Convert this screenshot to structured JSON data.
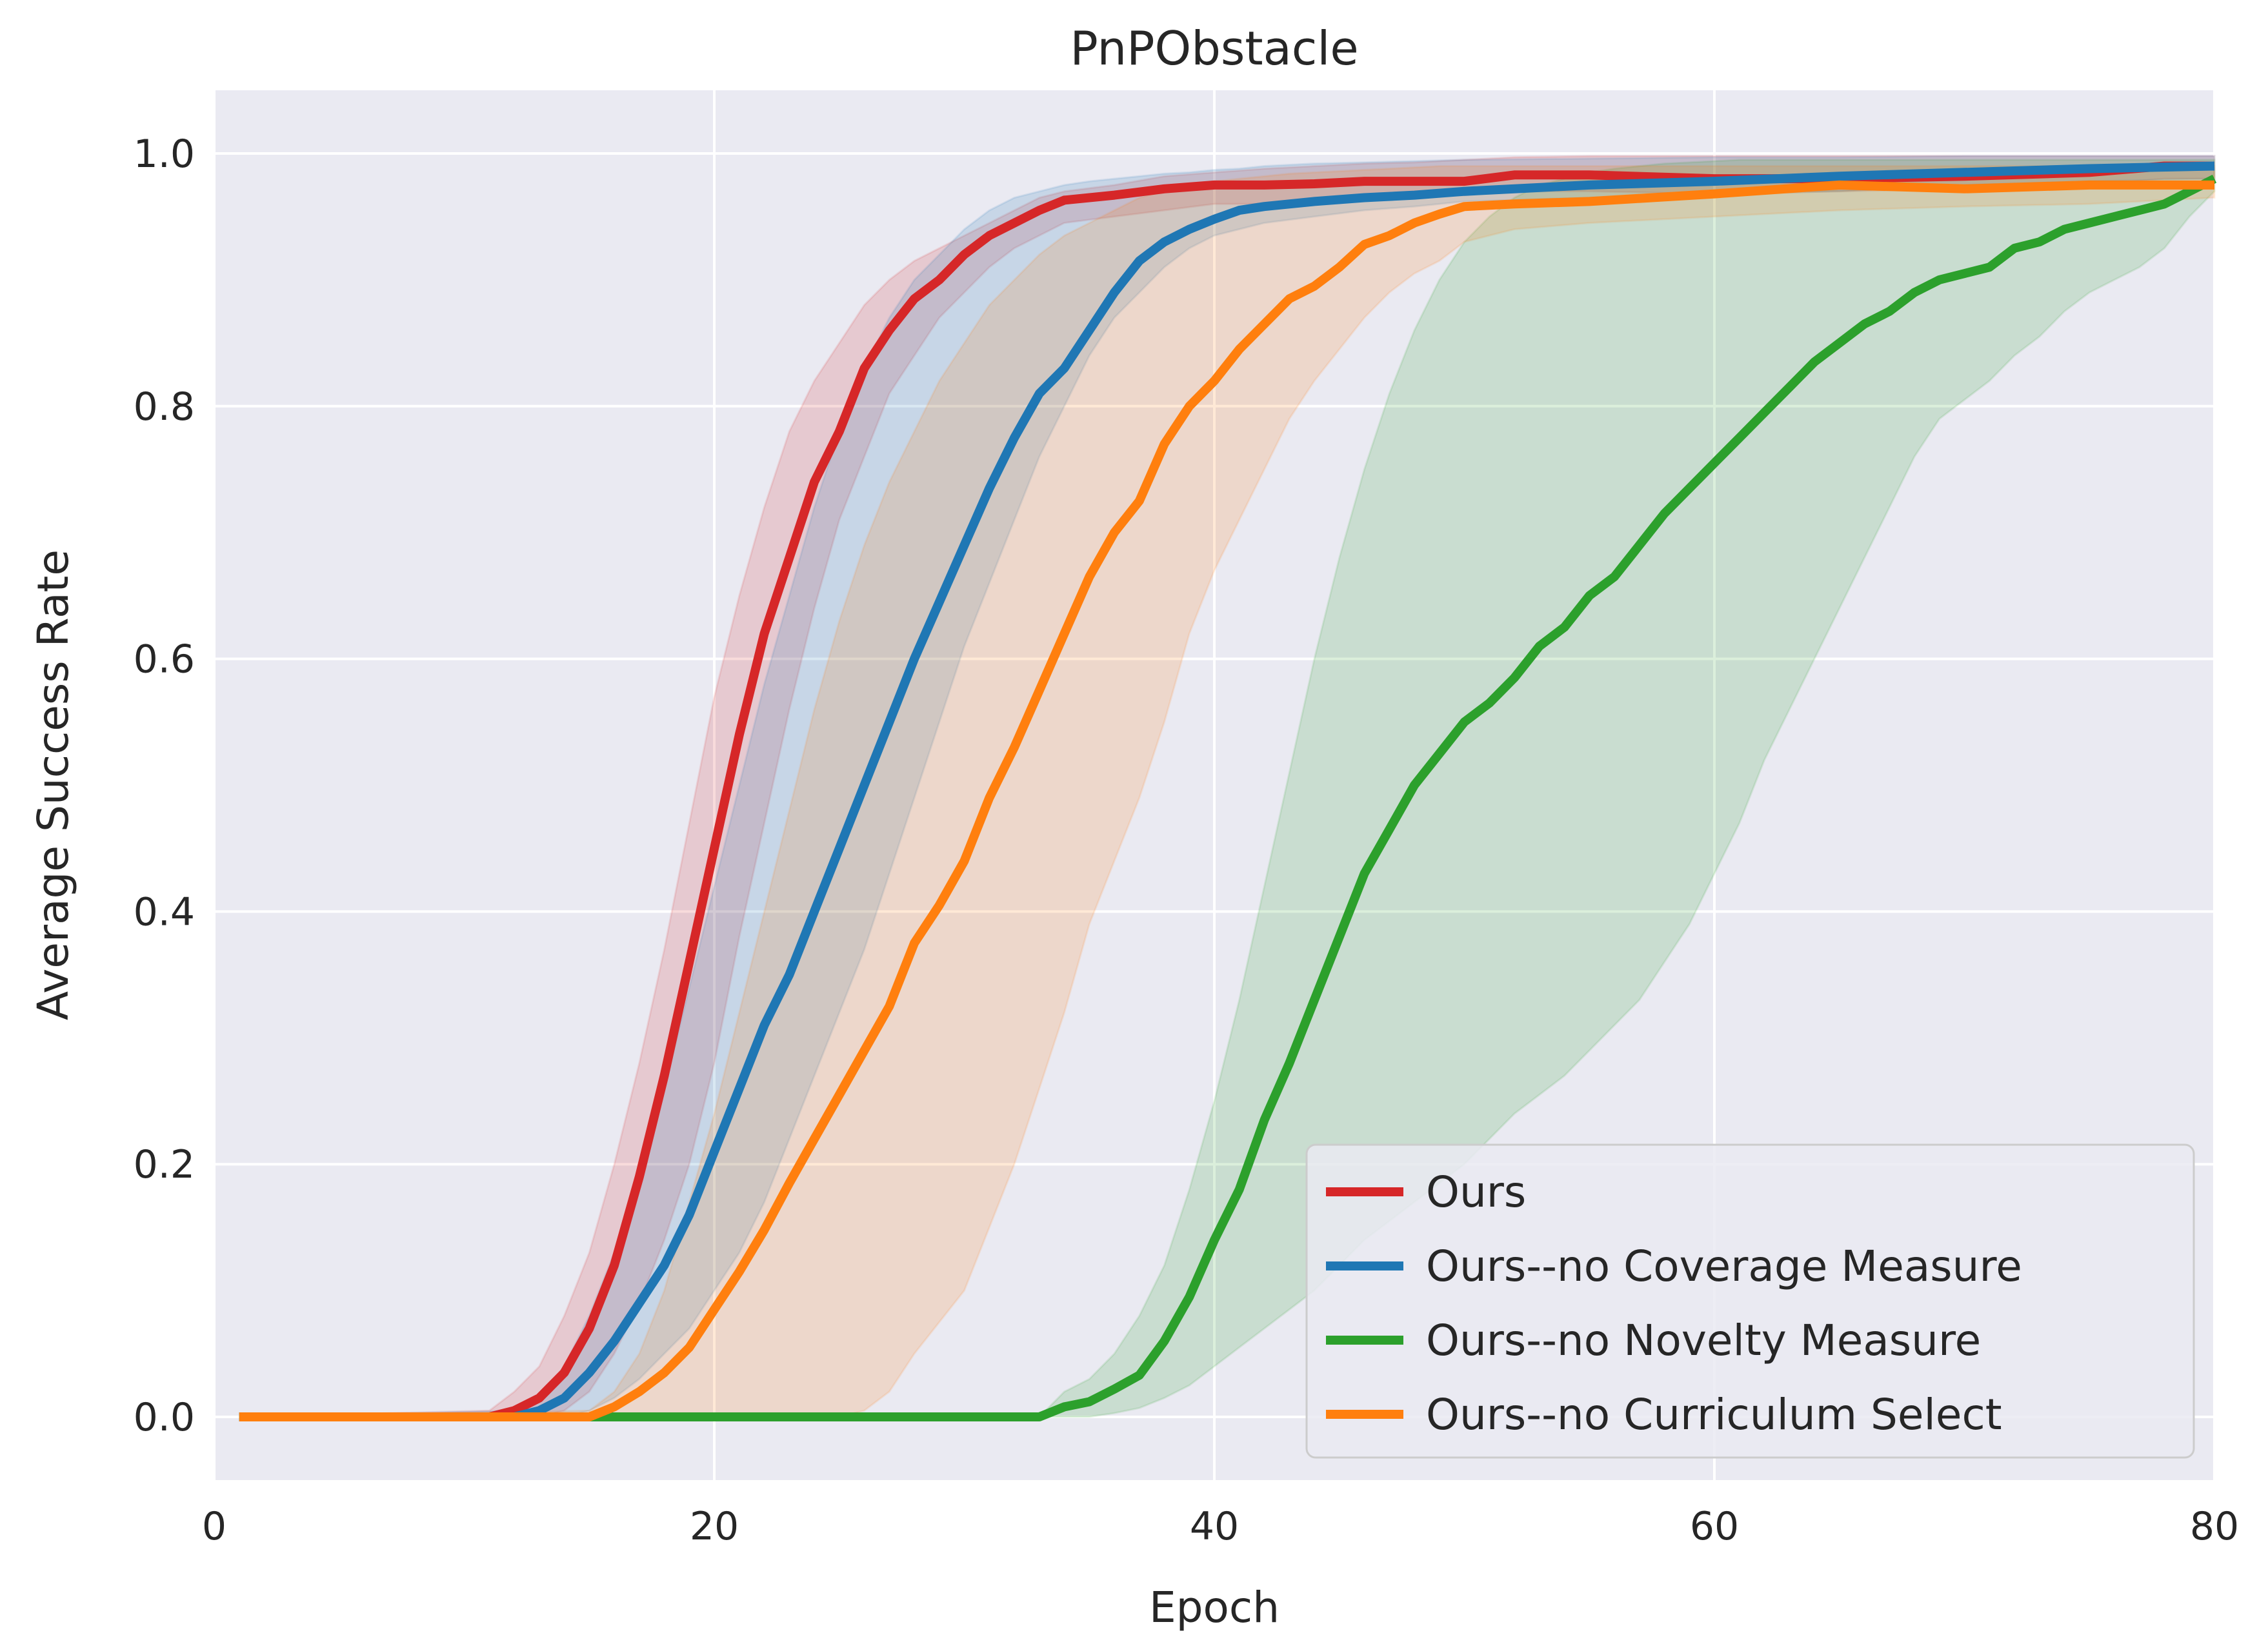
{
  "chart_data": {
    "type": "line",
    "title": "PnPObstacle",
    "xlabel": "Epoch",
    "ylabel": "Average Success Rate",
    "xlim": [
      0,
      80
    ],
    "ylim": [
      -0.05,
      1.05
    ],
    "xticks": [
      0,
      20,
      40,
      60,
      80
    ],
    "yticks": [
      0.0,
      0.2,
      0.4,
      0.6,
      0.8,
      1.0
    ],
    "xtick_labels": [
      "0",
      "20",
      "40",
      "60",
      "80"
    ],
    "ytick_labels": [
      "0.0",
      "0.2",
      "0.4",
      "0.6",
      "0.8",
      "1.0"
    ],
    "grid": true,
    "legend_position": "bottom-right",
    "series": [
      {
        "name": "Ours",
        "color": "#d62728",
        "x": [
          1,
          11,
          12,
          13,
          14,
          15,
          16,
          17,
          18,
          19,
          20,
          21,
          22,
          23,
          24,
          25,
          26,
          27,
          28,
          29,
          30,
          31,
          32,
          33,
          34,
          36,
          38,
          40,
          42,
          44,
          46,
          48,
          50,
          52,
          55,
          60,
          65,
          70,
          75,
          78,
          80
        ],
        "y": [
          0,
          0,
          0.005,
          0.015,
          0.035,
          0.07,
          0.12,
          0.19,
          0.27,
          0.36,
          0.45,
          0.54,
          0.62,
          0.68,
          0.74,
          0.78,
          0.83,
          0.86,
          0.885,
          0.9,
          0.92,
          0.935,
          0.945,
          0.955,
          0.963,
          0.967,
          0.972,
          0.975,
          0.975,
          0.976,
          0.978,
          0.978,
          0.978,
          0.983,
          0.983,
          0.98,
          0.98,
          0.982,
          0.985,
          0.99,
          0.99
        ],
        "lower": [
          0,
          0,
          0,
          0,
          0.005,
          0.02,
          0.05,
          0.09,
          0.14,
          0.2,
          0.28,
          0.38,
          0.47,
          0.56,
          0.64,
          0.71,
          0.76,
          0.81,
          0.84,
          0.87,
          0.89,
          0.91,
          0.925,
          0.935,
          0.945,
          0.95,
          0.955,
          0.96,
          0.96,
          0.962,
          0.965,
          0.966,
          0.967,
          0.97,
          0.97,
          0.968,
          0.97,
          0.972,
          0.975,
          0.98,
          0.98
        ],
        "upper": [
          0,
          0.005,
          0.02,
          0.04,
          0.08,
          0.13,
          0.2,
          0.28,
          0.37,
          0.47,
          0.57,
          0.65,
          0.72,
          0.78,
          0.82,
          0.85,
          0.88,
          0.9,
          0.915,
          0.925,
          0.935,
          0.945,
          0.955,
          0.965,
          0.97,
          0.975,
          0.982,
          0.985,
          0.988,
          0.99,
          0.992,
          0.993,
          0.995,
          0.997,
          0.998,
          0.998,
          0.998,
          0.998,
          0.998,
          0.998,
          0.998
        ]
      },
      {
        "name": "Ours--no Coverage Measure",
        "color": "#1f77b4",
        "x": [
          1,
          12,
          13,
          14,
          15,
          16,
          17,
          18,
          19,
          20,
          21,
          22,
          23,
          24,
          25,
          26,
          27,
          28,
          29,
          30,
          31,
          32,
          33,
          34,
          35,
          36,
          37,
          38,
          39,
          40,
          41,
          42,
          44,
          46,
          48,
          50,
          55,
          60,
          65,
          70,
          75,
          80
        ],
        "y": [
          0,
          0,
          0.005,
          0.015,
          0.035,
          0.06,
          0.09,
          0.12,
          0.16,
          0.21,
          0.26,
          0.31,
          0.35,
          0.4,
          0.45,
          0.5,
          0.55,
          0.6,
          0.645,
          0.69,
          0.735,
          0.775,
          0.81,
          0.83,
          0.86,
          0.89,
          0.915,
          0.93,
          0.94,
          0.948,
          0.955,
          0.958,
          0.962,
          0.965,
          0.967,
          0.97,
          0.975,
          0.978,
          0.982,
          0.985,
          0.988,
          0.99
        ],
        "lower": [
          0,
          0,
          0,
          0,
          0.005,
          0.015,
          0.03,
          0.05,
          0.07,
          0.1,
          0.13,
          0.17,
          0.22,
          0.27,
          0.32,
          0.37,
          0.43,
          0.49,
          0.55,
          0.61,
          0.66,
          0.71,
          0.76,
          0.8,
          0.84,
          0.87,
          0.89,
          0.91,
          0.925,
          0.935,
          0.94,
          0.945,
          0.95,
          0.955,
          0.958,
          0.962,
          0.965,
          0.968,
          0.97,
          0.975,
          0.978,
          0.98
        ],
        "upper": [
          0,
          0.005,
          0.015,
          0.04,
          0.08,
          0.13,
          0.19,
          0.26,
          0.34,
          0.42,
          0.5,
          0.58,
          0.65,
          0.72,
          0.78,
          0.83,
          0.87,
          0.9,
          0.92,
          0.94,
          0.955,
          0.965,
          0.97,
          0.975,
          0.978,
          0.98,
          0.982,
          0.984,
          0.985,
          0.987,
          0.988,
          0.99,
          0.992,
          0.993,
          0.994,
          0.995,
          0.996,
          0.997,
          0.997,
          0.998,
          0.998,
          0.998
        ]
      },
      {
        "name": "Ours--no Novelty Measure",
        "color": "#2ca02c",
        "x": [
          1,
          33,
          34,
          35,
          36,
          37,
          38,
          39,
          40,
          41,
          42,
          43,
          44,
          45,
          46,
          47,
          48,
          49,
          50,
          51,
          52,
          53,
          54,
          55,
          56,
          57,
          58,
          59,
          60,
          61,
          62,
          63,
          64,
          65,
          66,
          67,
          68,
          69,
          70,
          71,
          72,
          73,
          74,
          75,
          76,
          77,
          78,
          79,
          80
        ],
        "y": [
          0,
          0,
          0.008,
          0.012,
          0.022,
          0.033,
          0.06,
          0.095,
          0.14,
          0.18,
          0.235,
          0.28,
          0.33,
          0.38,
          0.43,
          0.465,
          0.5,
          0.525,
          0.55,
          0.565,
          0.585,
          0.61,
          0.625,
          0.65,
          0.665,
          0.69,
          0.715,
          0.735,
          0.755,
          0.775,
          0.795,
          0.815,
          0.835,
          0.85,
          0.865,
          0.875,
          0.89,
          0.9,
          0.905,
          0.91,
          0.925,
          0.93,
          0.94,
          0.945,
          0.95,
          0.955,
          0.96,
          0.97,
          0.98
        ],
        "lower": [
          0,
          0,
          0,
          0,
          0.003,
          0.007,
          0.015,
          0.025,
          0.04,
          0.055,
          0.07,
          0.085,
          0.1,
          0.12,
          0.14,
          0.155,
          0.17,
          0.185,
          0.2,
          0.22,
          0.24,
          0.255,
          0.27,
          0.29,
          0.31,
          0.33,
          0.36,
          0.39,
          0.43,
          0.47,
          0.52,
          0.56,
          0.6,
          0.64,
          0.68,
          0.72,
          0.76,
          0.79,
          0.805,
          0.82,
          0.84,
          0.855,
          0.875,
          0.89,
          0.9,
          0.91,
          0.925,
          0.95,
          0.97
        ],
        "upper": [
          0,
          0,
          0.02,
          0.03,
          0.05,
          0.08,
          0.12,
          0.18,
          0.25,
          0.33,
          0.42,
          0.51,
          0.6,
          0.68,
          0.75,
          0.81,
          0.86,
          0.9,
          0.93,
          0.95,
          0.965,
          0.975,
          0.98,
          0.985,
          0.988,
          0.99,
          0.992,
          0.993,
          0.994,
          0.995,
          0.995,
          0.995,
          0.995,
          0.995,
          0.995,
          0.995,
          0.995,
          0.995,
          0.995,
          0.995,
          0.995,
          0.995,
          0.995,
          0.995,
          0.995,
          0.995,
          0.995,
          0.995,
          0.995
        ]
      },
      {
        "name": "Ours--no Curriculum Select",
        "color": "#ff7f0e",
        "x": [
          1,
          15,
          16,
          17,
          18,
          19,
          20,
          21,
          22,
          23,
          24,
          25,
          26,
          27,
          28,
          29,
          30,
          31,
          32,
          33,
          34,
          35,
          36,
          37,
          38,
          39,
          40,
          41,
          42,
          43,
          44,
          45,
          46,
          47,
          48,
          49,
          50,
          52,
          55,
          60,
          65,
          70,
          75,
          80
        ],
        "y": [
          0,
          0,
          0.008,
          0.02,
          0.035,
          0.055,
          0.085,
          0.115,
          0.148,
          0.185,
          0.22,
          0.255,
          0.29,
          0.325,
          0.375,
          0.405,
          0.44,
          0.49,
          0.53,
          0.575,
          0.62,
          0.665,
          0.7,
          0.725,
          0.77,
          0.8,
          0.82,
          0.845,
          0.865,
          0.885,
          0.895,
          0.91,
          0.928,
          0.935,
          0.945,
          0.952,
          0.958,
          0.96,
          0.962,
          0.968,
          0.975,
          0.972,
          0.975,
          0.975
        ],
        "lower": [
          0,
          0,
          0,
          0,
          0,
          0,
          0,
          0,
          0,
          0,
          0,
          0,
          0.005,
          0.02,
          0.05,
          0.075,
          0.1,
          0.15,
          0.2,
          0.26,
          0.32,
          0.39,
          0.44,
          0.49,
          0.55,
          0.62,
          0.67,
          0.71,
          0.75,
          0.79,
          0.82,
          0.845,
          0.87,
          0.89,
          0.905,
          0.915,
          0.93,
          0.94,
          0.945,
          0.95,
          0.955,
          0.958,
          0.96,
          0.965
        ],
        "upper": [
          0,
          0.005,
          0.02,
          0.05,
          0.1,
          0.17,
          0.24,
          0.32,
          0.4,
          0.48,
          0.56,
          0.63,
          0.69,
          0.74,
          0.78,
          0.82,
          0.85,
          0.88,
          0.9,
          0.92,
          0.935,
          0.945,
          0.955,
          0.965,
          0.97,
          0.975,
          0.978,
          0.98,
          0.982,
          0.984,
          0.985,
          0.986,
          0.987,
          0.988,
          0.989,
          0.99,
          0.99,
          0.99,
          0.99,
          0.99,
          0.99,
          0.99,
          0.99,
          0.99
        ]
      }
    ]
  }
}
